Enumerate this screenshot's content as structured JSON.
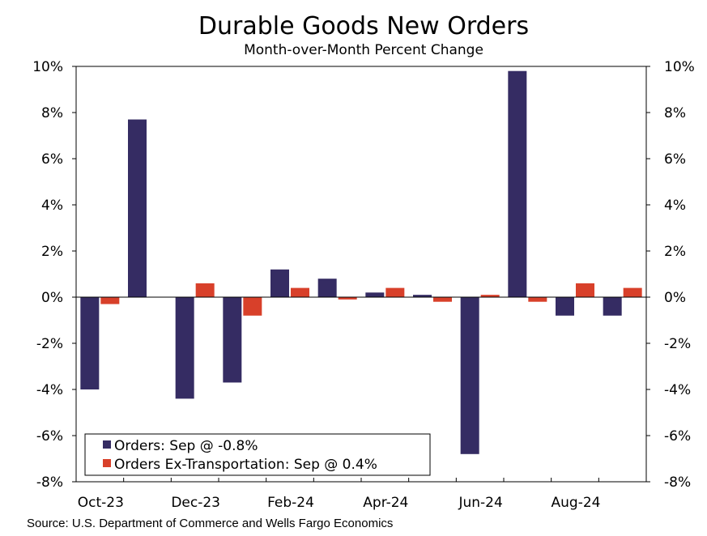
{
  "chart_data": {
    "type": "bar",
    "title": "Durable Goods New Orders",
    "subtitle": "Month-over-Month Percent Change",
    "categories": [
      "Oct-23",
      "Nov-23",
      "Dec-23",
      "Jan-24",
      "Feb-24",
      "Mar-24",
      "Apr-24",
      "May-24",
      "Jun-24",
      "Jul-24",
      "Aug-24",
      "Sep-24"
    ],
    "x_tick_labels": [
      "Oct-23",
      "Dec-23",
      "Feb-24",
      "Apr-24",
      "Jun-24",
      "Aug-24"
    ],
    "y_tick_labels": [
      "10%",
      "8%",
      "6%",
      "4%",
      "2%",
      "0%",
      "-2%",
      "-4%",
      "-6%",
      "-8%"
    ],
    "ylim": [
      -8,
      10
    ],
    "series": [
      {
        "name": "Orders",
        "color": "#352c63",
        "values": [
          -4.0,
          7.7,
          -4.4,
          -3.7,
          1.2,
          0.8,
          0.2,
          0.1,
          -6.8,
          9.8,
          -0.8,
          -0.8
        ]
      },
      {
        "name": "Orders Ex-Transportation",
        "color": "#d8402a",
        "values": [
          -0.3,
          0.0,
          0.6,
          -0.8,
          0.4,
          -0.1,
          0.4,
          -0.2,
          0.1,
          -0.2,
          0.6,
          0.4
        ]
      }
    ],
    "legend": [
      {
        "label": "Orders: Sep @ -0.8%",
        "color": "#352c63"
      },
      {
        "label": "Orders Ex-Transportation: Sep @ 0.4%",
        "color": "#d8402a"
      }
    ],
    "legend_position": "bottom-left",
    "source": "Source: U.S. Department of Commerce and Wells Fargo Economics"
  }
}
